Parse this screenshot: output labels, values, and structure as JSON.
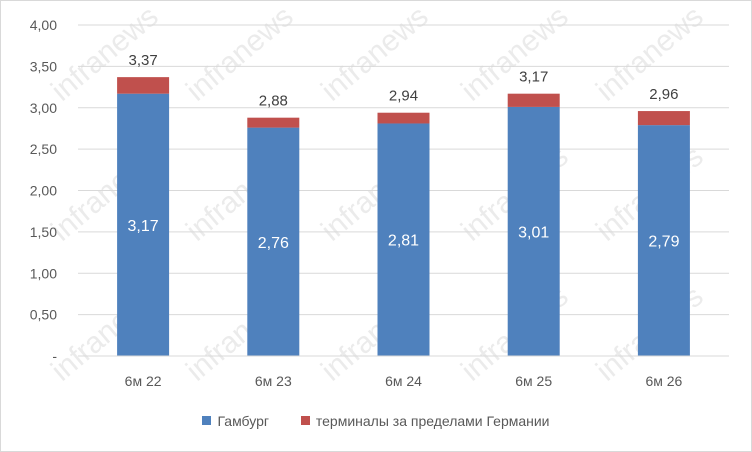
{
  "chart_data": {
    "type": "bar",
    "stacked": true,
    "categories": [
      "6м 22",
      "6м 23",
      "6м 24",
      "6м 25",
      "6м 26"
    ],
    "series": [
      {
        "name": "Гамбург",
        "color": "#4f81bd",
        "values": [
          3.17,
          2.76,
          2.81,
          3.01,
          2.79
        ],
        "labels": [
          "3,17",
          "2,76",
          "2,81",
          "3,01",
          "2,79"
        ]
      },
      {
        "name": "терминалы за пределами Германии",
        "color": "#c0504d",
        "values": [
          0.2,
          0.12,
          0.13,
          0.16,
          0.17
        ]
      }
    ],
    "totals": [
      3.37,
      2.88,
      2.94,
      3.17,
      2.96
    ],
    "total_labels": [
      "3,37",
      "2,88",
      "2,94",
      "3,17",
      "2,96"
    ],
    "ylim": [
      0,
      4
    ],
    "y_ticks": [
      0,
      0.5,
      1,
      1.5,
      2,
      2.5,
      3,
      3.5,
      4
    ],
    "y_tick_labels": [
      "-",
      "0,50",
      "1,00",
      "1,50",
      "2,00",
      "2,50",
      "3,00",
      "3,50",
      "4,00"
    ],
    "grid": "horizontal",
    "legend_position": "bottom",
    "title": "",
    "xlabel": "",
    "ylabel": ""
  },
  "watermark": "infranews"
}
